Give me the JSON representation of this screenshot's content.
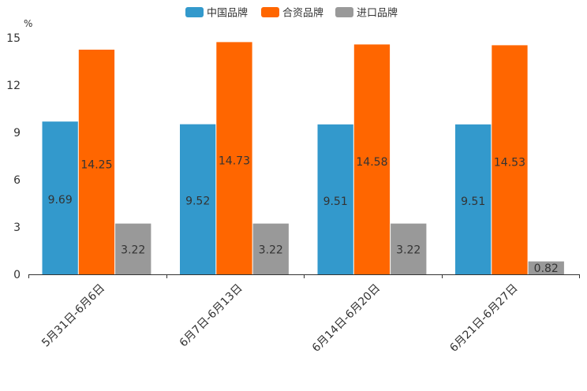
{
  "chart_data": {
    "type": "bar",
    "unit": "%",
    "categories": [
      "5月31日-6月6日",
      "6月7日-6月13日",
      "6月14日-6月20日",
      "6月21日-6月27日"
    ],
    "series": [
      {
        "name": "中国品牌",
        "color": "#3399cc",
        "values": [
          9.69,
          9.52,
          9.51,
          9.51
        ]
      },
      {
        "name": "合资品牌",
        "color": "#ff6600",
        "values": [
          14.25,
          14.73,
          14.58,
          14.53
        ]
      },
      {
        "name": "进口品牌",
        "color": "#999999",
        "values": [
          3.22,
          3.22,
          3.22,
          0.82
        ]
      }
    ],
    "ylim": [
      0,
      15
    ],
    "yticks": [
      0,
      3,
      6,
      9,
      12,
      15
    ],
    "ytick_labels": [
      "0",
      "3",
      "6",
      "9",
      "12",
      "15"
    ],
    "legend_position": "top-center",
    "grid": false
  }
}
